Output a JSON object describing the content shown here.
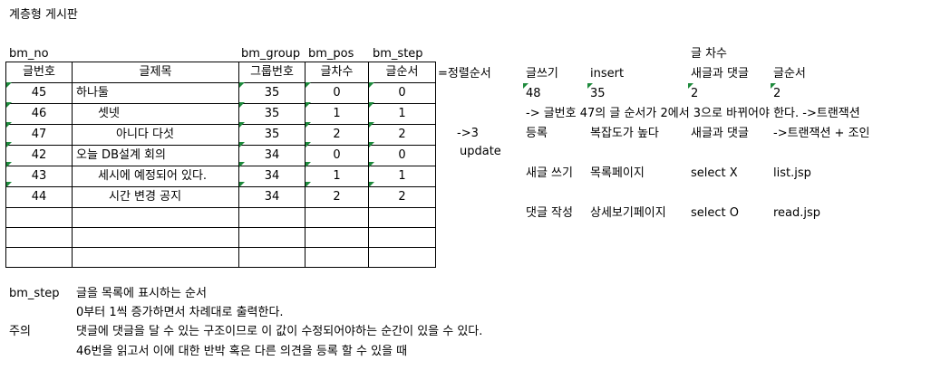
{
  "title": "계층형 게시판",
  "field_labels": [
    "bm_no",
    "bm_group",
    "bm_pos",
    "bm_step"
  ],
  "table": {
    "headers": [
      "글번호",
      "글제목",
      "그룹번호",
      "글차수",
      "글순서"
    ],
    "rows": [
      {
        "no": "45",
        "title": "하나둘",
        "group": "35",
        "pos": "0",
        "step": "0"
      },
      {
        "no": "46",
        "title": "셋넷",
        "group": "35",
        "pos": "1",
        "step": "1"
      },
      {
        "no": "47",
        "title": "아니다 다섯",
        "group": "35",
        "pos": "2",
        "step": "2"
      },
      {
        "no": "42",
        "title": "오늘 DB설계 회의",
        "group": "34",
        "pos": "0",
        "step": "0"
      },
      {
        "no": "43",
        "title": "세시에 예정되어 있다.",
        "group": "34",
        "pos": "1",
        "step": "1"
      },
      {
        "no": "44",
        "title": "시간 변경 공지",
        "group": "34",
        "pos": "2",
        "step": "2"
      }
    ]
  },
  "sort_label": "=정렬순서",
  "arrow_label": "->3",
  "update_label": "update",
  "right": {
    "header": "글 차수",
    "row1": [
      "글쓰기",
      "insert",
      "새글과 댓글",
      "글순서"
    ],
    "row2": [
      "48",
      "35",
      "2",
      "2"
    ],
    "note": "-> 글번호 47의 글 순서가 2에서 3으로 바뀌어야 한다. ->트랜잭션",
    "row3": [
      "등록",
      "복잡도가 높다",
      "새글과 댓글",
      "->트랜잭션 + 조인"
    ],
    "row4": [
      "새글 쓰기",
      "목록페이지",
      "select X",
      "list.jsp"
    ],
    "row5": [
      "댓글 작성",
      "상세보기페이지",
      "select  O",
      "read.jsp"
    ]
  },
  "notes": {
    "label1": "bm_step",
    "line1": "글을 목록에 표시하는 순서",
    "line2": "0부터 1씩 증가하면서 차례대로 출력한다.",
    "label2": "주의",
    "line3": "댓글에 댓글을 달 수 있는 구조이므로 이 값이 수정되어야하는 순간이 있을 수 있다.",
    "line4": "46번을 읽고서 이에 대한 반박 혹은 다른 의견을 등록 할 수 있을 때"
  }
}
